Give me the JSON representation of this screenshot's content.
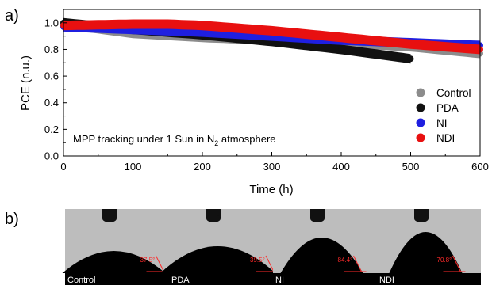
{
  "panel_a_label": "a)",
  "panel_b_label": "b)",
  "chart_data": {
    "type": "scatter",
    "xlabel": "Time (h)",
    "ylabel": "PCE (n.u.)",
    "xlim": [
      0,
      600
    ],
    "ylim": [
      0,
      1.1
    ],
    "xticks": [
      0,
      100,
      200,
      300,
      400,
      500,
      600
    ],
    "yticks": [
      0.0,
      0.2,
      0.4,
      0.6,
      0.8,
      1.0
    ],
    "xtick_labels": [
      "0",
      "100",
      "200",
      "300",
      "400",
      "500",
      "600"
    ],
    "ytick_labels": [
      "0.0",
      "0.2",
      "0.4",
      "0.6",
      "0.8",
      "1.0"
    ],
    "annotation": {
      "before": "MPP tracking under 1 Sun in N",
      "sub": "2",
      "after": " atmosphere"
    },
    "legend_placement": "bottom-right",
    "grid": false,
    "series": [
      {
        "name": "Control",
        "color": "#8c8c8c",
        "x": [
          0,
          100,
          200,
          300,
          400,
          500,
          600
        ],
        "y": [
          0.99,
          0.92,
          0.89,
          0.87,
          0.85,
          0.82,
          0.77
        ]
      },
      {
        "name": "PDA",
        "color": "#111111",
        "x": [
          0,
          100,
          200,
          300,
          400,
          500
        ],
        "y": [
          1.0,
          0.95,
          0.91,
          0.86,
          0.8,
          0.73
        ]
      },
      {
        "name": "NI",
        "color": "#1f1fe0",
        "x": [
          0,
          100,
          200,
          300,
          400,
          500,
          600
        ],
        "y": [
          0.97,
          0.95,
          0.93,
          0.9,
          0.87,
          0.85,
          0.83
        ]
      },
      {
        "name": "NDI",
        "color": "#e81010",
        "x": [
          0,
          100,
          150,
          200,
          300,
          400,
          500,
          600
        ],
        "y": [
          0.98,
          0.99,
          0.99,
          0.98,
          0.94,
          0.89,
          0.84,
          0.8
        ]
      }
    ]
  },
  "contact_angles": [
    {
      "label": "Control",
      "angle": "37.5°"
    },
    {
      "label": "PDA",
      "angle": "39.5°"
    },
    {
      "label": "NI",
      "angle": "84.4°"
    },
    {
      "label": "NDI",
      "angle": "70.8°"
    }
  ]
}
